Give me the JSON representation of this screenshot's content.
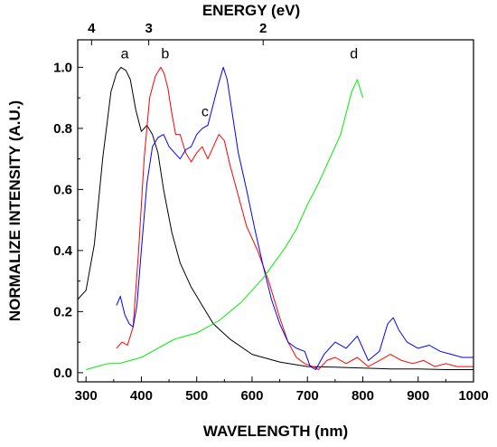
{
  "chart_data": {
    "type": "line",
    "title": "",
    "xlabel": "WAVELENGTH (nm)",
    "ylabel": "NORMALIZE INTENSITY (A.U.)",
    "top_axis_label": "ENERGY (eV)",
    "xlim": [
      285,
      1000
    ],
    "ylim": [
      -0.03,
      1.09
    ],
    "x_ticks": [
      "300",
      "400",
      "500",
      "600",
      "700",
      "800",
      "900",
      "1000"
    ],
    "y_ticks": [
      "0.0",
      "0.2",
      "0.4",
      "0.6",
      "0.8",
      "1.0"
    ],
    "top_ticks": [
      {
        "label": "4",
        "energy_eV": 4
      },
      {
        "label": "3",
        "energy_eV": 3
      },
      {
        "label": "2",
        "energy_eV": 2
      }
    ],
    "grid": false,
    "legend": "none",
    "series": [
      {
        "name": "a",
        "color": "#000000",
        "x": [
          285,
          300,
          315,
          330,
          345,
          355,
          363,
          372,
          380,
          390,
          400,
          410,
          420,
          430,
          440,
          455,
          470,
          490,
          510,
          530,
          560,
          600,
          650,
          700,
          750,
          800,
          850,
          900,
          950,
          1000
        ],
        "y": [
          0.24,
          0.27,
          0.42,
          0.7,
          0.92,
          0.98,
          1.0,
          0.99,
          0.96,
          0.86,
          0.79,
          0.81,
          0.78,
          0.72,
          0.6,
          0.46,
          0.36,
          0.28,
          0.22,
          0.16,
          0.11,
          0.06,
          0.035,
          0.02,
          0.018,
          0.015,
          0.012,
          0.012,
          0.01,
          0.01
        ]
      },
      {
        "name": "b",
        "color": "#ff0000",
        "x": [
          355,
          365,
          375,
          385,
          395,
          405,
          415,
          425,
          435,
          441,
          448,
          455,
          462,
          470,
          480,
          490,
          500,
          510,
          520,
          530,
          540,
          550,
          560,
          575,
          590,
          610,
          630,
          650,
          665,
          680,
          695,
          710,
          720,
          735,
          750,
          770,
          790,
          810,
          830,
          850,
          870,
          890,
          910,
          930,
          950,
          970,
          1000
        ],
        "y": [
          0.08,
          0.1,
          0.09,
          0.15,
          0.4,
          0.7,
          0.9,
          0.97,
          1.0,
          0.98,
          0.93,
          0.85,
          0.78,
          0.78,
          0.72,
          0.69,
          0.72,
          0.74,
          0.7,
          0.74,
          0.78,
          0.76,
          0.68,
          0.58,
          0.48,
          0.4,
          0.3,
          0.18,
          0.1,
          0.05,
          0.03,
          0.02,
          0.01,
          0.04,
          0.05,
          0.03,
          0.05,
          0.02,
          0.04,
          0.06,
          0.04,
          0.03,
          0.04,
          0.02,
          0.03,
          0.02,
          0.02
        ]
      },
      {
        "name": "c",
        "color": "#0000ff",
        "x": [
          355,
          362,
          370,
          378,
          385,
          392,
          400,
          410,
          420,
          430,
          440,
          450,
          460,
          470,
          480,
          490,
          500,
          510,
          520,
          530,
          540,
          548,
          555,
          565,
          575,
          590,
          605,
          620,
          635,
          650,
          665,
          680,
          695,
          705,
          715,
          730,
          750,
          770,
          790,
          810,
          830,
          845,
          855,
          865,
          880,
          900,
          920,
          940,
          960,
          980,
          1000
        ],
        "y": [
          0.22,
          0.25,
          0.19,
          0.16,
          0.15,
          0.22,
          0.4,
          0.62,
          0.74,
          0.77,
          0.78,
          0.74,
          0.72,
          0.7,
          0.73,
          0.74,
          0.78,
          0.8,
          0.81,
          0.88,
          0.95,
          1.0,
          0.96,
          0.84,
          0.72,
          0.6,
          0.47,
          0.35,
          0.24,
          0.16,
          0.1,
          0.08,
          0.07,
          0.02,
          0.01,
          0.06,
          0.1,
          0.08,
          0.12,
          0.04,
          0.07,
          0.16,
          0.18,
          0.14,
          0.1,
          0.08,
          0.09,
          0.07,
          0.06,
          0.05,
          0.05
        ]
      },
      {
        "name": "d",
        "color": "#00ee00",
        "x": [
          300,
          320,
          340,
          360,
          380,
          400,
          420,
          440,
          460,
          480,
          500,
          520,
          540,
          560,
          580,
          600,
          620,
          640,
          660,
          680,
          700,
          720,
          740,
          760,
          770,
          780,
          790,
          800
        ],
        "y": [
          0.01,
          0.02,
          0.03,
          0.03,
          0.04,
          0.05,
          0.07,
          0.09,
          0.11,
          0.12,
          0.13,
          0.15,
          0.17,
          0.2,
          0.23,
          0.27,
          0.31,
          0.36,
          0.41,
          0.47,
          0.55,
          0.62,
          0.7,
          0.78,
          0.85,
          0.92,
          0.96,
          0.9
        ]
      }
    ],
    "curve_labels": [
      {
        "text": "a",
        "x": 370,
        "y": 1.03
      },
      {
        "text": "b",
        "x": 443,
        "y": 1.03
      },
      {
        "text": "c",
        "x": 515,
        "y": 0.84
      },
      {
        "text": "d",
        "x": 784,
        "y": 1.03
      }
    ]
  }
}
